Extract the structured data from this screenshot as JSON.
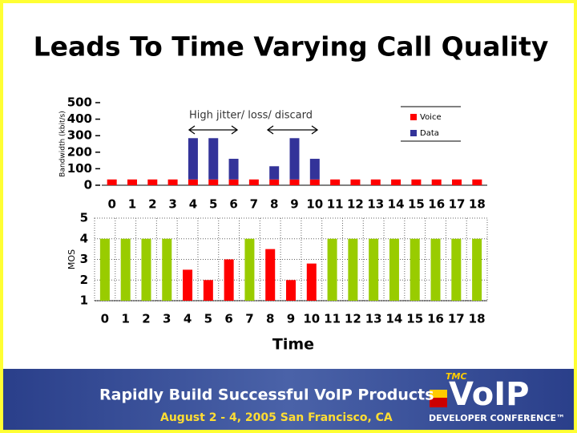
{
  "title": "Leads To Time Varying Call Quality",
  "chart_data": [
    {
      "type": "bar",
      "stacked": true,
      "ylabel": "Bandwidth (kbit/s)",
      "annotation": "High jitter/ loss/ discard",
      "categories": [
        "0",
        "1",
        "2",
        "3",
        "4",
        "5",
        "6",
        "7",
        "8",
        "9",
        "10",
        "11",
        "12",
        "13",
        "14",
        "15",
        "16",
        "17",
        "18"
      ],
      "series": [
        {
          "name": "Voice",
          "color": "#ff0000",
          "values": [
            35,
            35,
            35,
            35,
            35,
            35,
            35,
            35,
            35,
            35,
            35,
            35,
            35,
            35,
            35,
            35,
            35,
            35,
            35
          ]
        },
        {
          "name": "Data",
          "color": "#333399",
          "values": [
            0,
            0,
            0,
            0,
            250,
            250,
            125,
            0,
            80,
            250,
            125,
            0,
            0,
            0,
            0,
            0,
            0,
            0,
            0
          ]
        }
      ],
      "ylim": [
        0,
        500
      ],
      "yticks": [
        0,
        100,
        200,
        300,
        400,
        500
      ],
      "legend": "upper right"
    },
    {
      "type": "bar",
      "ylabel": "MOS",
      "xlabel": "Time",
      "categories": [
        "0",
        "1",
        "2",
        "3",
        "4",
        "5",
        "6",
        "7",
        "8",
        "9",
        "10",
        "11",
        "12",
        "13",
        "14",
        "15",
        "16",
        "17",
        "18"
      ],
      "values": [
        4,
        4,
        4,
        4,
        2.5,
        2,
        3,
        4,
        3.5,
        2,
        2.8,
        4,
        4,
        4,
        4,
        4,
        4,
        4,
        4
      ],
      "colors": [
        "#99cc00",
        "#99cc00",
        "#99cc00",
        "#99cc00",
        "#ff0000",
        "#ff0000",
        "#ff0000",
        "#99cc00",
        "#ff0000",
        "#ff0000",
        "#ff0000",
        "#99cc00",
        "#99cc00",
        "#99cc00",
        "#99cc00",
        "#99cc00",
        "#99cc00",
        "#99cc00",
        "#99cc00"
      ],
      "ylim": [
        1,
        5
      ],
      "yticks": [
        1,
        2,
        3,
        4,
        5
      ],
      "grid": true
    }
  ],
  "banner": {
    "headline": "Rapidly Build Successful VoIP Products",
    "dates": "August 2 - 4, 2005 San Francisco, CA",
    "logo_tag": "TMC",
    "logo": "VoIP",
    "logo_sub": "DEVELOPER CONFERENCE™"
  }
}
